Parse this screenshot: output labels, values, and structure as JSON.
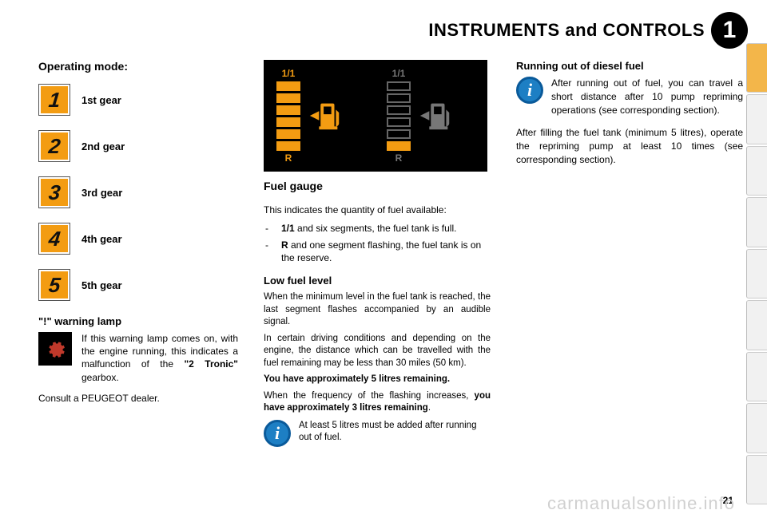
{
  "header": {
    "title": "INSTRUMENTS and CONTROLS",
    "chapter": "1"
  },
  "left": {
    "title": "Operating mode:",
    "gears": [
      {
        "digit": "1",
        "label": "1st gear"
      },
      {
        "digit": "2",
        "label": "2nd gear"
      },
      {
        "digit": "3",
        "label": "3rd gear"
      },
      {
        "digit": "4",
        "label": "4th gear"
      },
      {
        "digit": "5",
        "label": "5th gear"
      }
    ],
    "warn_heading": "\"!\" warning lamp",
    "warn_text_a": "If this warning lamp comes on, with the engine running, this indicates a malfunction of the ",
    "warn_text_bold": "\"2 Tronic\"",
    "warn_text_b": " gearbox.",
    "consult": "Consult a PEUGEOT dealer.",
    "gear_icon_bg": "#f39c12",
    "warn_icon_bg": "#000000",
    "warn_gear_color": "#c0392b"
  },
  "mid": {
    "figure": {
      "top_label": "1/1",
      "bottom_label": "R",
      "segments": 6,
      "color_on": "#f39c12",
      "color_off_border": "#666666",
      "color_off_text": "#777777",
      "background": "#000000"
    },
    "title": "Fuel gauge",
    "intro": "This indicates the quantity of fuel available:",
    "bullets": [
      {
        "bold": "1/1",
        "rest": " and six segments, the fuel tank is full."
      },
      {
        "bold": "R",
        "rest": " and one segment flashing, the fuel tank is on the reserve."
      }
    ],
    "low_title": "Low fuel level",
    "low_p1": "When the minimum level in the fuel tank is reached, the last segment flashes accompanied by an audible signal.",
    "low_p2": "In certain driving conditions and depending on the engine, the distance which can be travelled with the fuel remaining may be less than 30 miles (50 km).",
    "low_bold1": "You have approximately 5 litres remaining.",
    "low_p3a": "When the frequency of the flashing increases, ",
    "low_bold2": "you have approximately 3 litres remaining",
    "low_p3b": ".",
    "info_text": "At least 5 litres must be added after running out of fuel."
  },
  "right": {
    "title": "Running out of diesel fuel",
    "info_text": "After running out of fuel, you can travel a short distance after 10 pump repriming operations (see corresponding section).",
    "para": "After filling the fuel tank (minimum 5 litres), operate the repriming pump at least 10 times (see corresponding section)."
  },
  "page_number": "21",
  "watermark": "carmanualsonline.info",
  "info_icon": {
    "bg": "#1d7fc4",
    "border": "#0a5a9a",
    "glyph_color": "#ffffff"
  },
  "tabs": {
    "count": 9,
    "active_index": 0,
    "active_color": "#f3b64a",
    "inactive_color": "#f1f1f1"
  }
}
